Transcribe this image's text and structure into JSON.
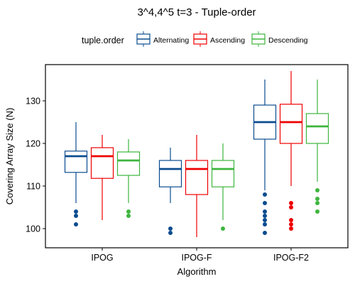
{
  "chart_data": {
    "type": "boxplot",
    "title": "3^4,4^5 t=3 - Tuple-order",
    "xlabel": "Algorithm",
    "ylabel": "Covering Array Size (N)",
    "legend": {
      "title": "tuple.order",
      "placement": "top"
    },
    "categories": [
      "IPOG",
      "IPOG-F",
      "IPOG-F2"
    ],
    "ylim": [
      95.5,
      138.5
    ],
    "yticks": [
      100,
      110,
      120,
      130
    ],
    "grid": false,
    "series": [
      {
        "name": "Alternating",
        "color": "#0b4c8f",
        "boxes": [
          {
            "min": 106,
            "q1": 113.2,
            "median": 117,
            "q3": 118.2,
            "max": 125,
            "outliers": [
              104,
              103,
              101
            ]
          },
          {
            "min": 106,
            "q1": 109.8,
            "median": 114,
            "q3": 116,
            "max": 119,
            "outliers": [
              100,
              99
            ]
          },
          {
            "min": 109,
            "q1": 121,
            "median": 125,
            "q3": 129,
            "max": 135,
            "outliers": [
              108,
              106,
              104,
              103,
              102,
              101,
              99
            ]
          }
        ]
      },
      {
        "name": "Ascending",
        "color": "#ee0000",
        "boxes": [
          {
            "min": 102,
            "q1": 111.8,
            "median": 117,
            "q3": 119,
            "max": 122,
            "outliers": []
          },
          {
            "min": 98,
            "q1": 108,
            "median": 114,
            "q3": 116,
            "max": 122,
            "outliers": []
          },
          {
            "min": 110,
            "q1": 120,
            "median": 125,
            "q3": 129.2,
            "max": 137,
            "outliers": [
              106,
              105,
              102,
              101,
              100
            ]
          }
        ]
      },
      {
        "name": "Descending",
        "color": "#3db53d",
        "boxes": [
          {
            "min": 106,
            "q1": 112.5,
            "median": 116,
            "q3": 118,
            "max": 121,
            "outliers": [
              104,
              103
            ]
          },
          {
            "min": 102,
            "q1": 109.8,
            "median": 114,
            "q3": 116,
            "max": 120,
            "outliers": [
              100
            ]
          },
          {
            "min": 111,
            "q1": 120,
            "median": 124,
            "q3": 127,
            "max": 135,
            "outliers": [
              109,
              107,
              106,
              104
            ]
          }
        ]
      }
    ]
  }
}
